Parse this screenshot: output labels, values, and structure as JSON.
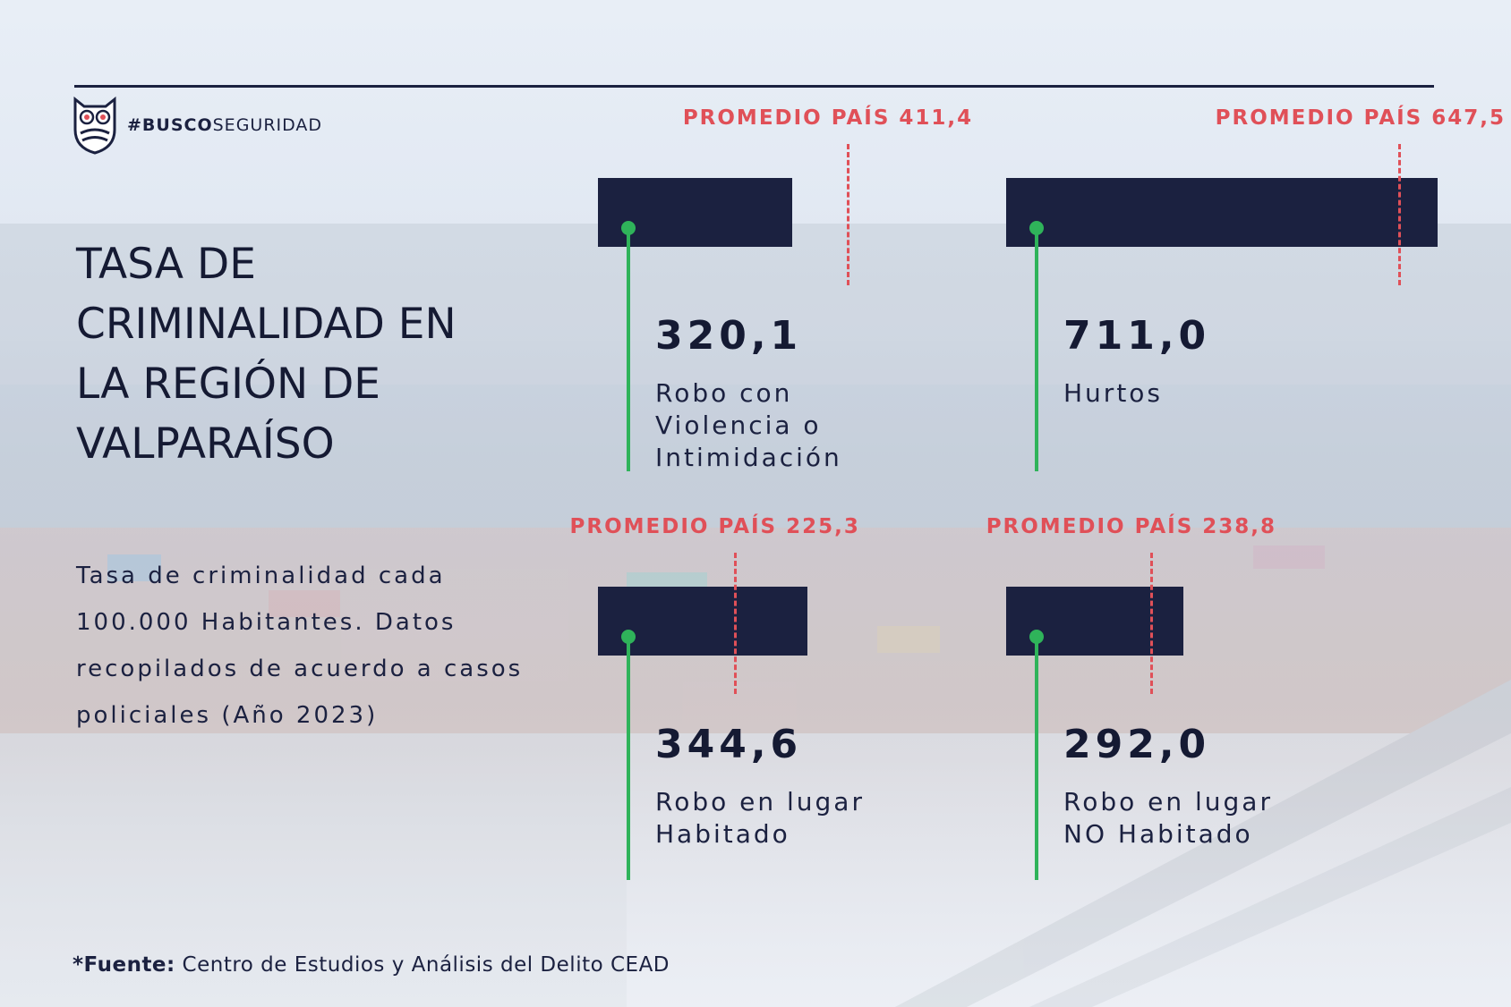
{
  "brand": {
    "hash": "#",
    "strong": "BUSCO",
    "light": "SEGURIDAD",
    "icon": "owl-icon"
  },
  "title": "TASA DE\nCRIMINALIDAD EN\nLA REGIÓN DE\nVALPARAÍSO",
  "subtitle": "Tasa de criminalidad cada 100.000 Habitantes. Datos recopilados de acuerdo a casos policiales (Año 2023)",
  "source": {
    "label": "*Fuente:",
    "text": " Centro de Estudios y Análisis del Delito CEAD"
  },
  "colors": {
    "navy": "#1b2140",
    "average": "#e05058",
    "marker": "#2fb35a"
  },
  "chart_data": {
    "type": "bar",
    "categories": [
      "Robo con\nViolencia o\nIntimidación",
      "Hurtos",
      "Robo en lugar\nHabitado",
      "Robo en lugar\nNO Habitado"
    ],
    "values": [
      320.1,
      711.0,
      344.6,
      292.0
    ],
    "value_labels": [
      "320,1",
      "711,0",
      "344,6",
      "292,0"
    ],
    "national_average": [
      411.4,
      647.5,
      225.3,
      238.8
    ],
    "average_labels": [
      "PROMEDIO PAÍS 411,4",
      "PROMEDIO PAÍS 647,5",
      "PROMEDIO PAÍS 225,3",
      "PROMEDIO PAÍS 238,8"
    ]
  }
}
